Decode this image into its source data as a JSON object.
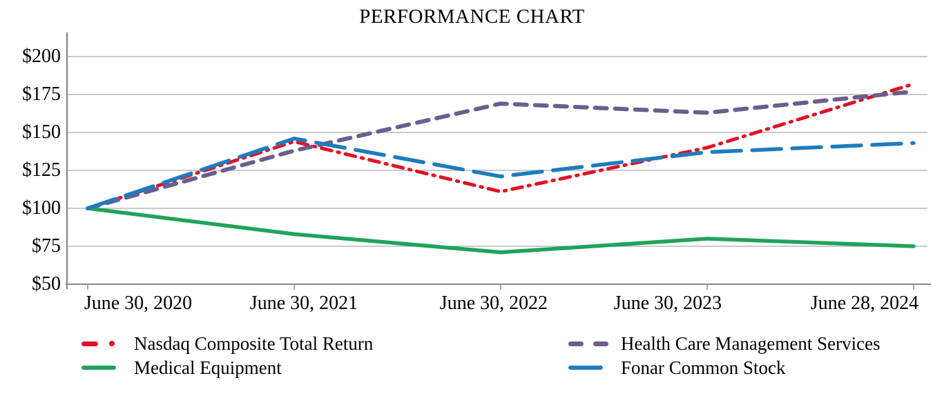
{
  "title": "PERFORMANCE CHART",
  "chart_data": {
    "type": "line",
    "title": "PERFORMANCE CHART",
    "x_categories": [
      "June 30, 2020",
      "June 30, 2021",
      "June 30, 2022",
      "June 30, 2023",
      "June 28, 2024"
    ],
    "y_ticks": [
      "$200",
      "$175",
      "$150",
      "$125",
      "$100",
      "$75",
      "$50"
    ],
    "ylim": [
      50,
      200
    ],
    "y_tick_values": [
      200,
      175,
      150,
      125,
      100,
      75,
      50
    ],
    "grid": "horizontal",
    "legend_position": "bottom, two columns",
    "axis_color": "#8a8a8a",
    "gridline_color": "#a9a9a9",
    "series": [
      {
        "name": "Nasdaq Composite Total Return",
        "color": "#e01226",
        "style": "dash-dot",
        "values": [
          100,
          144,
          111,
          140,
          182
        ]
      },
      {
        "name": "Health Care Management Services",
        "color": "#6b5e8e",
        "style": "dashed",
        "values": [
          100,
          138,
          169,
          163,
          177
        ]
      },
      {
        "name": "Medical Equipment",
        "color": "#1fa35c",
        "style": "solid",
        "values": [
          100,
          83,
          71,
          80,
          75
        ]
      },
      {
        "name": "Fonar Common Stock",
        "color": "#1d7cbd",
        "style": "long-dash",
        "values": [
          100,
          146,
          121,
          137,
          143
        ]
      }
    ]
  }
}
